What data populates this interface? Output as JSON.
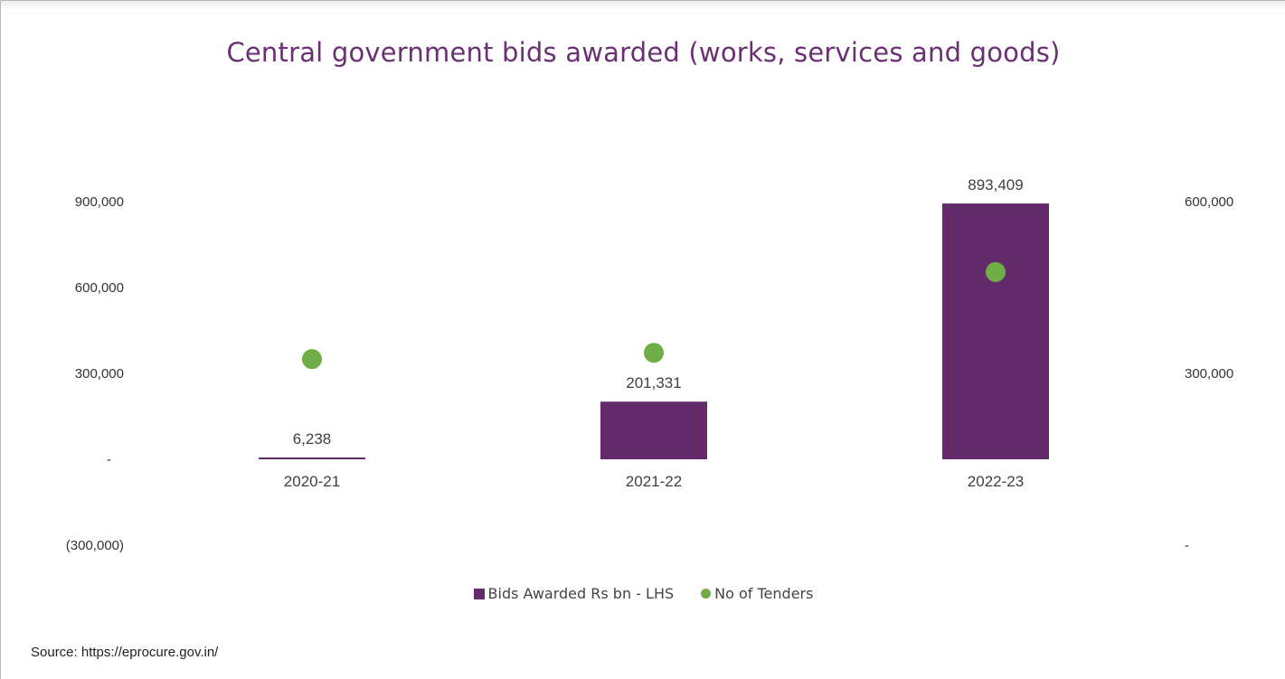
{
  "chart_data": {
    "type": "bar+scatter",
    "title": "Central government bids awarded (works, services and goods)",
    "categories": [
      "2020-21",
      "2021-22",
      "2022-23"
    ],
    "series": [
      {
        "name": "Bids Awarded Rs bn - LHS",
        "type": "bar",
        "axis": "left",
        "values": [
          6238,
          201331,
          893409
        ],
        "data_labels": [
          "6,238",
          "201,331",
          "893,409"
        ],
        "color": "#642b6b"
      },
      {
        "name": "No of Tenders",
        "type": "scatter",
        "axis": "right",
        "values": [
          325000,
          336000,
          477000
        ],
        "color": "#70ad47"
      }
    ],
    "y_left": {
      "ylim": [
        -300000,
        900000
      ],
      "ticks": [
        900000,
        600000,
        300000,
        0,
        -300000
      ],
      "tick_labels": [
        "900,000",
        "600,000",
        "300,000",
        "-",
        "(300,000)"
      ]
    },
    "y_right": {
      "ylim": [
        0,
        600000
      ],
      "ticks": [
        600000,
        300000,
        0
      ],
      "tick_labels": [
        "600,000",
        "300,000",
        "-"
      ]
    },
    "grid": false,
    "legend_position": "bottom"
  },
  "source": "Source: https://eprocure.gov.in/"
}
